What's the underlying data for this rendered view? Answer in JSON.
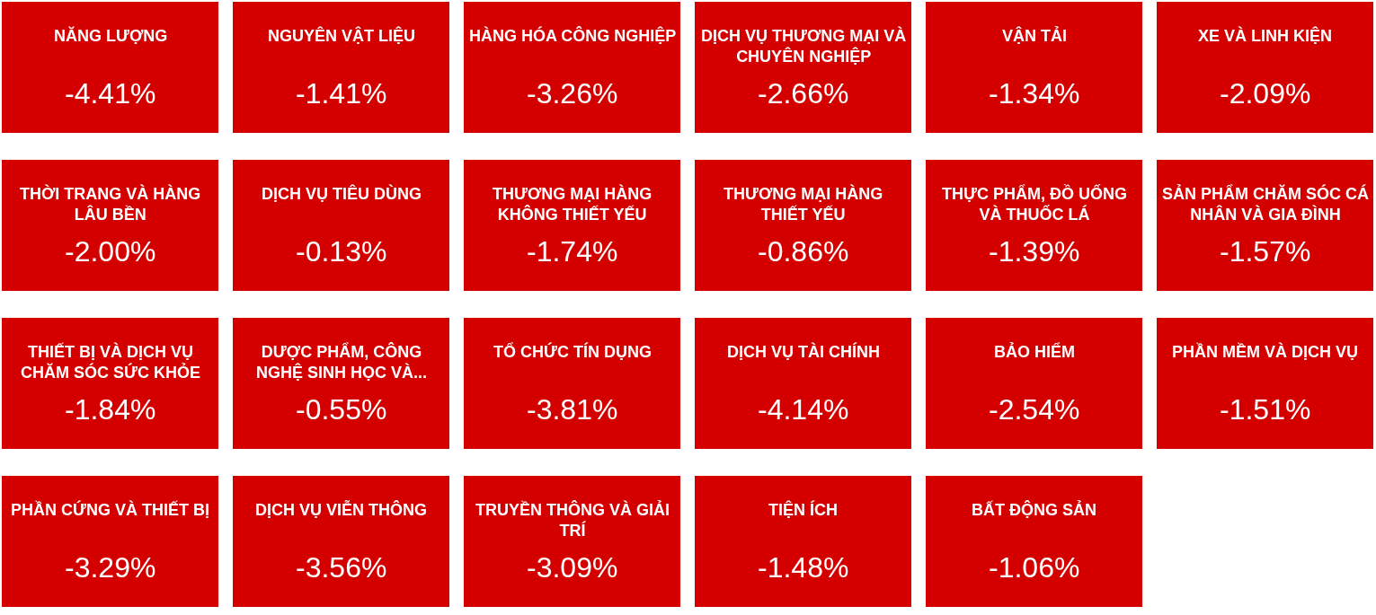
{
  "chart_data": {
    "type": "other",
    "categories": [
      "NĂNG LƯỢNG",
      "NGUYÊN VẬT LIỆU",
      "HÀNG HÓA CÔNG NGHIỆP",
      "DỊCH VỤ THƯƠNG MẠI VÀ CHUYÊN NGHIỆP",
      "VẬN TẢI",
      "XE VÀ LINH KIỆN",
      "THỜI TRANG VÀ HÀNG LÂU BỀN",
      "DỊCH VỤ TIÊU DÙNG",
      "THƯƠNG MẠI HÀNG KHÔNG THIẾT YẾU",
      "THƯƠNG MẠI HÀNG THIẾT YẾU",
      "THỰC PHẨM, ĐỒ UỐNG VÀ THUỐC LÁ",
      "SẢN PHẨM CHĂM SÓC CÁ NHÂN VÀ GIA ĐÌNH",
      "THIẾT BỊ VÀ DỊCH VỤ CHĂM SÓC SỨC KHỎE",
      "DƯỢC PHẨM, CÔNG NGHỆ SINH HỌC VÀ...",
      "TỔ CHỨC TÍN DỤNG",
      "DỊCH VỤ TÀI CHÍNH",
      "BẢO HIỂM",
      "PHẦN MỀM VÀ DỊCH VỤ",
      "PHẦN CỨNG VÀ THIẾT BỊ",
      "DỊCH VỤ VIỄN THÔNG",
      "TRUYỀN THÔNG VÀ GIẢI TRÍ",
      "TIỆN ÍCH",
      "BẤT ĐỘNG SẢN"
    ],
    "values": [
      -4.41,
      -1.41,
      -3.26,
      -2.66,
      -1.34,
      -2.09,
      -2.0,
      -0.13,
      -1.74,
      -0.86,
      -1.39,
      -1.57,
      -1.84,
      -0.55,
      -3.81,
      -4.14,
      -2.54,
      -1.51,
      -3.29,
      -3.56,
      -3.09,
      -1.48,
      -1.06
    ],
    "value_labels": [
      "-4.41%",
      "-1.41%",
      "-3.26%",
      "-2.66%",
      "-1.34%",
      "-2.09%",
      "-2.00%",
      "-0.13%",
      "-1.74%",
      "-0.86%",
      "-1.39%",
      "-1.57%",
      "-1.84%",
      "-0.55%",
      "-3.81%",
      "-4.14%",
      "-2.54%",
      "-1.51%",
      "-3.29%",
      "-3.56%",
      "-3.09%",
      "-1.48%",
      "-1.06%"
    ],
    "color": "#d40000"
  }
}
